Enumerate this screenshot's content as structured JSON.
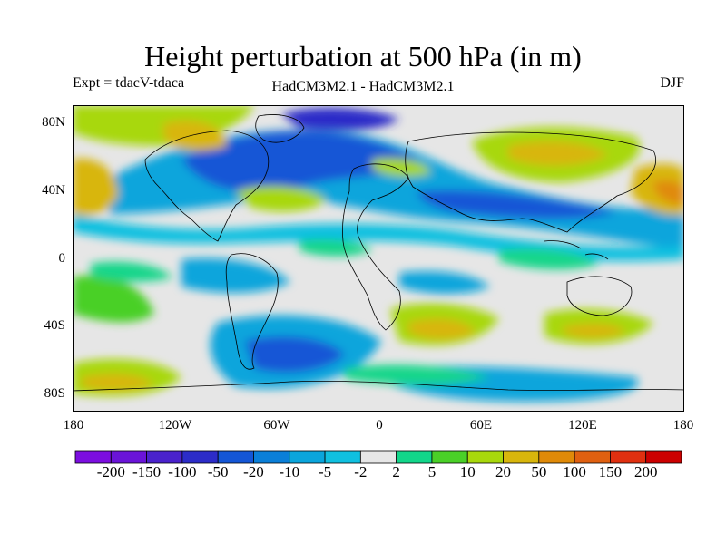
{
  "title": "Height perturbation at 500 hPa (in m)",
  "subtitle_left": "Expt = tdacV-tdaca",
  "subtitle_center": "HadCM3M2.1 - HadCM3M2.1",
  "subtitle_right": "DJF",
  "lat_labels": [
    "80N",
    "40N",
    "0",
    "40S",
    "80S"
  ],
  "lon_labels": [
    "180",
    "120W",
    "60W",
    "0",
    "60E",
    "120E",
    "180"
  ],
  "colorbar": {
    "labels": [
      "-200",
      "-150",
      "-100",
      "-50",
      "-20",
      "-10",
      "-5",
      "-2",
      "2",
      "5",
      "10",
      "20",
      "50",
      "100",
      "150",
      "200"
    ],
    "colors": [
      "#7c0ee0",
      "#6a14d8",
      "#4a22cc",
      "#2c2cc8",
      "#1456d6",
      "#0a7fd8",
      "#0aa5dc",
      "#10c0e0",
      "#e6e6e6",
      "#12d68a",
      "#4ad028",
      "#a8d80c",
      "#d8b60c",
      "#e08a08",
      "#e06010",
      "#e03010",
      "#cc0000"
    ]
  }
}
